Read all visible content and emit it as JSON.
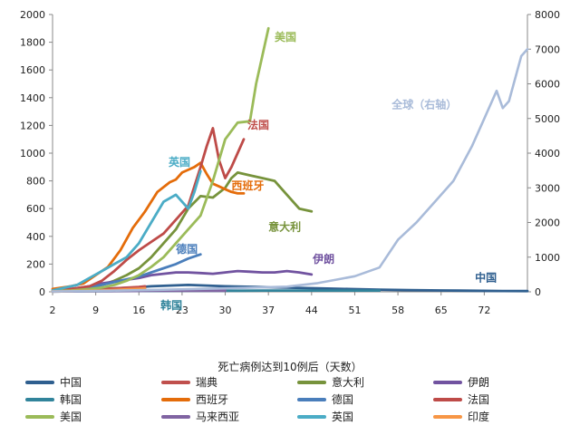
{
  "chart_data": {
    "type": "line",
    "xlabel": "死亡病例达到10例后（天数）",
    "x_ticks": [
      2,
      9,
      16,
      23,
      30,
      37,
      44,
      51,
      58,
      65,
      72
    ],
    "xlim": [
      2,
      79
    ],
    "y_left": {
      "lim": [
        0,
        2000
      ],
      "ticks": [
        0,
        200,
        400,
        600,
        800,
        1000,
        1200,
        1400,
        1600,
        1800,
        2000
      ]
    },
    "y_right": {
      "lim": [
        0,
        8000
      ],
      "ticks": [
        0,
        1000,
        2000,
        3000,
        4000,
        5000,
        6000,
        7000,
        8000
      ]
    },
    "grid": false,
    "legend_position": "bottom",
    "series": [
      {
        "name": "中国",
        "color": "#2f5f8f",
        "axis": "left",
        "x": [
          2,
          5,
          8,
          10,
          12,
          15,
          18,
          21,
          24,
          27,
          30,
          35,
          40,
          45,
          50,
          55,
          60,
          65,
          70,
          75,
          79
        ],
        "y": [
          5,
          10,
          15,
          20,
          25,
          30,
          40,
          45,
          50,
          45,
          40,
          35,
          30,
          25,
          20,
          15,
          12,
          10,
          8,
          6,
          5
        ]
      },
      {
        "name": "瑞典",
        "color": "#c0504d",
        "axis": "left",
        "x": [
          2,
          4,
          6,
          8,
          10,
          12,
          14,
          16,
          17
        ],
        "y": [
          5,
          8,
          10,
          15,
          20,
          25,
          30,
          35,
          40
        ]
      },
      {
        "name": "意大利",
        "color": "#77933c",
        "axis": "left",
        "x": [
          2,
          5,
          8,
          10,
          12,
          14,
          16,
          18,
          20,
          22,
          24,
          26,
          28,
          30,
          31,
          32,
          34,
          36,
          38,
          40,
          42,
          44
        ],
        "y": [
          10,
          20,
          30,
          50,
          80,
          120,
          170,
          250,
          350,
          450,
          600,
          690,
          680,
          750,
          820,
          860,
          840,
          820,
          800,
          700,
          600,
          580
        ]
      },
      {
        "name": "伊朗",
        "color": "#7153a0",
        "axis": "left",
        "x": [
          2,
          5,
          8,
          10,
          13,
          16,
          18,
          20,
          22,
          24,
          26,
          28,
          30,
          32,
          34,
          36,
          38,
          40,
          42,
          44
        ],
        "y": [
          5,
          20,
          40,
          60,
          80,
          100,
          120,
          130,
          140,
          140,
          135,
          130,
          140,
          150,
          145,
          140,
          140,
          150,
          140,
          125
        ]
      },
      {
        "name": "韩国",
        "color": "#31849b",
        "axis": "left",
        "x": [
          2,
          5,
          8,
          12,
          16,
          20,
          22,
          24,
          28,
          32,
          36,
          40,
          45,
          50,
          55
        ],
        "y": [
          2,
          3,
          4,
          5,
          6,
          6,
          7,
          7,
          8,
          8,
          9,
          9,
          9,
          9,
          9
        ]
      },
      {
        "name": "西班牙",
        "color": "#e46c0a",
        "axis": "left",
        "x": [
          2,
          5,
          7,
          9,
          11,
          13,
          15,
          17,
          19,
          21,
          22,
          23,
          24,
          25,
          26,
          27,
          28,
          29,
          30,
          31,
          32,
          33
        ],
        "y": [
          20,
          40,
          60,
          120,
          180,
          300,
          460,
          580,
          720,
          790,
          810,
          860,
          880,
          900,
          930,
          850,
          780,
          760,
          740,
          720,
          710,
          710
        ]
      },
      {
        "name": "德国",
        "color": "#4a7ebb",
        "axis": "left",
        "x": [
          2,
          4,
          6,
          8,
          10,
          12,
          14,
          16,
          18,
          20,
          22,
          24,
          26
        ],
        "y": [
          5,
          10,
          20,
          30,
          50,
          70,
          90,
          110,
          140,
          170,
          200,
          240,
          270
        ]
      },
      {
        "name": "法国",
        "color": "#be4b48",
        "axis": "left",
        "x": [
          2,
          5,
          8,
          10,
          12,
          14,
          16,
          18,
          20,
          22,
          24,
          25,
          26,
          27,
          28,
          29,
          30,
          31,
          32,
          33
        ],
        "y": [
          10,
          20,
          40,
          80,
          150,
          230,
          300,
          360,
          420,
          520,
          620,
          760,
          900,
          1050,
          1180,
          950,
          820,
          900,
          1000,
          1100
        ]
      },
      {
        "name": "美国",
        "color": "#9bbb59",
        "axis": "left",
        "x": [
          2,
          5,
          8,
          10,
          12,
          14,
          16,
          18,
          20,
          22,
          24,
          26,
          28,
          30,
          32,
          34,
          35,
          36,
          37
        ],
        "y": [
          5,
          10,
          20,
          30,
          50,
          80,
          120,
          180,
          250,
          350,
          450,
          550,
          800,
          1100,
          1220,
          1230,
          1500,
          1700,
          1900
        ]
      },
      {
        "name": "马来西亚",
        "color": "#8064a2",
        "axis": "left",
        "x": [
          2,
          5,
          8,
          10,
          12,
          15,
          18,
          21,
          24,
          27,
          30
        ],
        "y": [
          2,
          3,
          4,
          5,
          6,
          6,
          7,
          7,
          8,
          8,
          8
        ]
      },
      {
        "name": "英国",
        "color": "#4bacc6",
        "axis": "left",
        "x": [
          2,
          4,
          6,
          8,
          10,
          12,
          14,
          16,
          18,
          20,
          22,
          24,
          25,
          26
        ],
        "y": [
          10,
          30,
          50,
          100,
          150,
          200,
          250,
          350,
          500,
          650,
          700,
          600,
          720,
          870
        ]
      },
      {
        "name": "印度",
        "color": "#f79646",
        "axis": "left",
        "x": [
          2,
          5,
          8,
          10,
          12,
          14,
          16,
          17
        ],
        "y": [
          3,
          5,
          8,
          10,
          14,
          18,
          22,
          25
        ]
      },
      {
        "name": "全球（右轴）",
        "color": "#a9bbd9",
        "axis": "right",
        "x": [
          2,
          10,
          20,
          30,
          40,
          45,
          48,
          51,
          55,
          58,
          61,
          64,
          67,
          70,
          72,
          74,
          75,
          76,
          78,
          79
        ],
        "y": [
          10,
          30,
          60,
          100,
          150,
          250,
          350,
          450,
          700,
          1500,
          2000,
          2600,
          3200,
          4200,
          5000,
          5800,
          5300,
          5500,
          6800,
          7000
        ]
      }
    ],
    "labels": [
      {
        "text": "美国",
        "x": 38,
        "y": 1810,
        "color": "#9bbb59"
      },
      {
        "text": "法国",
        "x": 33.6,
        "y": 1175,
        "color": "#c0504d"
      },
      {
        "text": "英国",
        "x": 20.8,
        "y": 910,
        "color": "#4bacc6"
      },
      {
        "text": "西班牙",
        "x": 31,
        "y": 740,
        "color": "#e46c0a"
      },
      {
        "text": "意大利",
        "x": 37,
        "y": 440,
        "color": "#77933c"
      },
      {
        "text": "德国",
        "x": 22,
        "y": 280,
        "color": "#4a7ebb"
      },
      {
        "text": "伊朗",
        "x": 44.2,
        "y": 210,
        "color": "#7153a0"
      },
      {
        "text": "中国",
        "x": 70.5,
        "y": 75,
        "color": "#2f5f8f"
      },
      {
        "text": "韩国",
        "x": 19.5,
        "y": -125,
        "color": "#31849b"
      },
      {
        "text": "全球（右轴）",
        "x": 57,
        "y": 1325,
        "color": "#a9bbd9"
      }
    ]
  },
  "legend": [
    {
      "name": "中国",
      "color": "#2f5f8f"
    },
    {
      "name": "瑞典",
      "color": "#c0504d"
    },
    {
      "name": "意大利",
      "color": "#77933c"
    },
    {
      "name": "伊朗",
      "color": "#7153a0"
    },
    {
      "name": "韩国",
      "color": "#31849b"
    },
    {
      "name": "西班牙",
      "color": "#e46c0a"
    },
    {
      "name": "德国",
      "color": "#4a7ebb"
    },
    {
      "name": "法国",
      "color": "#be4b48"
    },
    {
      "name": "美国",
      "color": "#9bbb59"
    },
    {
      "name": "马来西亚",
      "color": "#8064a2"
    },
    {
      "name": "英国",
      "color": "#4bacc6"
    },
    {
      "name": "印度",
      "color": "#f79646"
    }
  ]
}
